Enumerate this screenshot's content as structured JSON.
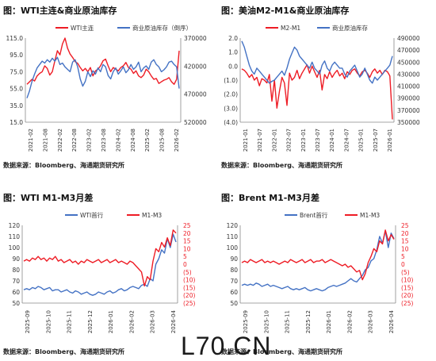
{
  "panels": [
    {
      "title": "图：WTI主连&商业原油库存",
      "source": "数据来源：Bloomberg、海通期货研究所"
    },
    {
      "title": "图：美油M2-M1&商业原油库存",
      "source": "数据来源：Bloomberg、海通期货研究所"
    },
    {
      "title": "图：WTI M1-M3月差",
      "source": "数据来源：Bloomberg、海通期货研究所"
    },
    {
      "title": "图：Brent M1-M3月差",
      "source": "数据来源：Bloomberg、海通期货研究所"
    }
  ],
  "watermark": "L70.CN",
  "chart_data": [
    {
      "type": "line",
      "x_tick_labels": [
        "2021-02",
        "2021-08",
        "2022-02",
        "2022-08",
        "2023-02",
        "2023-08",
        "2024-02",
        "2024-08",
        "2025-02",
        "2025-08",
        "2026-02"
      ],
      "y_left": {
        "ticks": [
          "115.0",
          "95.0",
          "75.0",
          "55.0",
          "35.0",
          "15.0"
        ],
        "range": [
          15,
          115
        ]
      },
      "y_right": {
        "ticks": [
          "370000",
          "420000",
          "470000",
          "520000"
        ],
        "range": [
          370000,
          545000
        ],
        "inverted": true
      },
      "series": [
        {
          "name": "WTI主连",
          "axis": "left",
          "color": "#ee1c25",
          "values": [
            60,
            63,
            66,
            64,
            70,
            73,
            75,
            82,
            79,
            71,
            75,
            88,
            100,
            95,
            108,
            115,
            103,
            96,
            92,
            87,
            85,
            80,
            76,
            79,
            75,
            80,
            70,
            76,
            78,
            82,
            88,
            90,
            82,
            75,
            80,
            78,
            76,
            80,
            82,
            86,
            80,
            78,
            73,
            76,
            70,
            68,
            71,
            78,
            75,
            70,
            66,
            67,
            61,
            63,
            65,
            66,
            68,
            63,
            60,
            66,
            100
          ]
        },
        {
          "name": "商业原油库存（倒序）",
          "axis": "right",
          "color": "#4472c4",
          "values": [
            495000,
            480000,
            460000,
            445000,
            432000,
            425000,
            418000,
            422000,
            415000,
            420000,
            412000,
            418000,
            410000,
            425000,
            422000,
            430000,
            435000,
            440000,
            420000,
            415000,
            430000,
            455000,
            470000,
            460000,
            440000,
            450000,
            438000,
            445000,
            432000,
            440000,
            425000,
            430000,
            448000,
            455000,
            440000,
            432000,
            445000,
            438000,
            430000,
            442000,
            436000,
            425000,
            435000,
            430000,
            420000,
            440000,
            432000,
            428000,
            435000,
            420000,
            415000,
            425000,
            430000,
            440000,
            436000,
            430000,
            420000,
            418000,
            425000,
            430000,
            475000
          ]
        }
      ]
    },
    {
      "type": "line",
      "x_tick_labels": [
        "2021-01",
        "2021-07",
        "2022-01",
        "2022-07",
        "2023-01",
        "2023-07",
        "2024-01",
        "2024-07",
        "2025-01",
        "2025-07",
        "2026-01"
      ],
      "y_left": {
        "ticks": [
          "2.0",
          "1.0",
          "0.0",
          "(1.0)",
          "(2.0)",
          "(3.0)",
          "(4.0)"
        ],
        "range": [
          -4,
          2
        ]
      },
      "y_right": {
        "ticks": [
          "490000",
          "470000",
          "450000",
          "430000",
          "410000",
          "390000",
          "370000",
          "350000"
        ],
        "range": [
          350000,
          490000
        ]
      },
      "series": [
        {
          "name": "M2-M1",
          "axis": "left",
          "color": "#ee1c25",
          "values": [
            -0.2,
            -0.3,
            -0.5,
            -0.8,
            -0.6,
            -1.0,
            -0.8,
            -1.4,
            -0.9,
            -1.0,
            -1.2,
            -0.6,
            -2.5,
            -1.0,
            -3.0,
            -1.8,
            -0.8,
            -1.2,
            -2.8,
            -0.5,
            -1.0,
            -0.8,
            -0.3,
            -0.9,
            -0.5,
            -0.2,
            0.1,
            -0.5,
            0.0,
            -0.4,
            -0.8,
            -0.3,
            -1.7,
            -0.6,
            -0.9,
            -0.4,
            -0.8,
            -0.5,
            -0.3,
            -0.7,
            -0.5,
            -0.9,
            -0.4,
            -0.6,
            -0.3,
            -0.2,
            -0.5,
            -0.7,
            -0.4,
            -0.3,
            -0.5,
            -0.8,
            -0.4,
            -0.2,
            -0.5,
            -0.3,
            -0.6,
            -0.3,
            -0.4,
            -0.7,
            -3.8
          ]
        },
        {
          "name": "商业原油库存",
          "axis": "right",
          "color": "#4472c4",
          "values": [
            485000,
            475000,
            460000,
            445000,
            435000,
            430000,
            440000,
            435000,
            430000,
            425000,
            420000,
            415000,
            418000,
            420000,
            425000,
            430000,
            435000,
            428000,
            440000,
            455000,
            465000,
            475000,
            470000,
            460000,
            455000,
            450000,
            445000,
            440000,
            450000,
            440000,
            435000,
            430000,
            445000,
            452000,
            440000,
            435000,
            445000,
            450000,
            445000,
            440000,
            440000,
            430000,
            425000,
            435000,
            440000,
            445000,
            435000,
            425000,
            430000,
            440000,
            430000,
            420000,
            415000,
            425000,
            420000,
            425000,
            430000,
            435000,
            440000,
            445000,
            460000
          ]
        }
      ]
    },
    {
      "type": "line",
      "x_tick_labels": [
        "2025-09",
        "2025-10",
        "2025-11",
        "2025-12",
        "2026-01",
        "2026-02",
        "2026-03",
        "2026-04"
      ],
      "y_left": {
        "ticks": [
          "120",
          "110",
          "100",
          "90",
          "80",
          "70",
          "60",
          "50"
        ],
        "range": [
          50,
          120
        ]
      },
      "y_right": {
        "ticks": [
          "25",
          "20",
          "15",
          "10",
          "5",
          "0",
          "(5)",
          "(10)",
          "(15)",
          "(20)",
          "(25)"
        ],
        "range": [
          -25,
          25
        ]
      },
      "series": [
        {
          "name": "WTI首行",
          "axis": "left",
          "color": "#4472c4",
          "values": [
            62,
            63,
            62,
            64,
            63,
            65,
            64,
            62,
            63,
            64,
            61,
            62,
            62,
            60,
            61,
            62,
            60,
            59,
            61,
            60,
            58,
            59,
            60,
            58,
            57,
            58,
            60,
            59,
            58,
            60,
            61,
            59,
            60,
            62,
            63,
            61,
            62,
            64,
            65,
            64,
            63,
            66,
            67,
            65,
            72,
            70,
            85,
            90,
            98,
            95,
            108,
            100,
            112,
            105
          ]
        },
        {
          "name": "M1-M3",
          "axis": "right",
          "color": "#ee1c25",
          "values": [
            2,
            3,
            2,
            4,
            3,
            5,
            3,
            4,
            2,
            4,
            3,
            5,
            2,
            3,
            1,
            2,
            3,
            1,
            2,
            0,
            2,
            1,
            3,
            2,
            1,
            2,
            3,
            1,
            2,
            3,
            1,
            2,
            3,
            1,
            2,
            1,
            0,
            2,
            1,
            -1,
            -3,
            -5,
            -14,
            -8,
            -10,
            2,
            10,
            8,
            14,
            11,
            17,
            12,
            22,
            20
          ]
        }
      ]
    },
    {
      "type": "line",
      "x_tick_labels": [
        "2025-09",
        "2025-10",
        "2025-11",
        "2025-12",
        "2026-01",
        "2026-02",
        "2026-03",
        "2026-04"
      ],
      "y_left": {
        "ticks": [
          "120",
          "110",
          "100",
          "90",
          "80",
          "70",
          "60",
          "50"
        ],
        "range": [
          50,
          120
        ]
      },
      "y_right": {
        "ticks": [
          "25",
          "20",
          "15",
          "10",
          "5",
          "0",
          "(5)",
          "(10)",
          "(15)",
          "(20)",
          "(25)"
        ],
        "range": [
          -25,
          25
        ]
      },
      "series": [
        {
          "name": "Brent首行",
          "axis": "left",
          "color": "#4472c4",
          "values": [
            66,
            67,
            66,
            67,
            66,
            68,
            67,
            65,
            66,
            67,
            65,
            66,
            65,
            64,
            63,
            64,
            65,
            63,
            62,
            63,
            62,
            63,
            64,
            62,
            61,
            62,
            63,
            62,
            61,
            62,
            64,
            65,
            66,
            65,
            66,
            67,
            68,
            70,
            72,
            70,
            69,
            72,
            75,
            80,
            82,
            88,
            90,
            98,
            110,
            104,
            115,
            100,
            113,
            108
          ]
        },
        {
          "name": "M1-M3",
          "axis": "right",
          "color": "#ee1c25",
          "values": [
            1,
            2,
            1,
            3,
            2,
            1,
            2,
            3,
            1,
            2,
            1,
            2,
            1,
            0,
            1,
            2,
            1,
            3,
            2,
            1,
            2,
            3,
            1,
            2,
            3,
            1,
            2,
            2,
            3,
            1,
            2,
            3,
            2,
            1,
            0,
            -1,
            0,
            -2,
            -1,
            -3,
            -5,
            -4,
            -10,
            -6,
            1,
            5,
            10,
            8,
            15,
            13,
            22,
            15,
            19,
            16
          ]
        }
      ]
    }
  ]
}
